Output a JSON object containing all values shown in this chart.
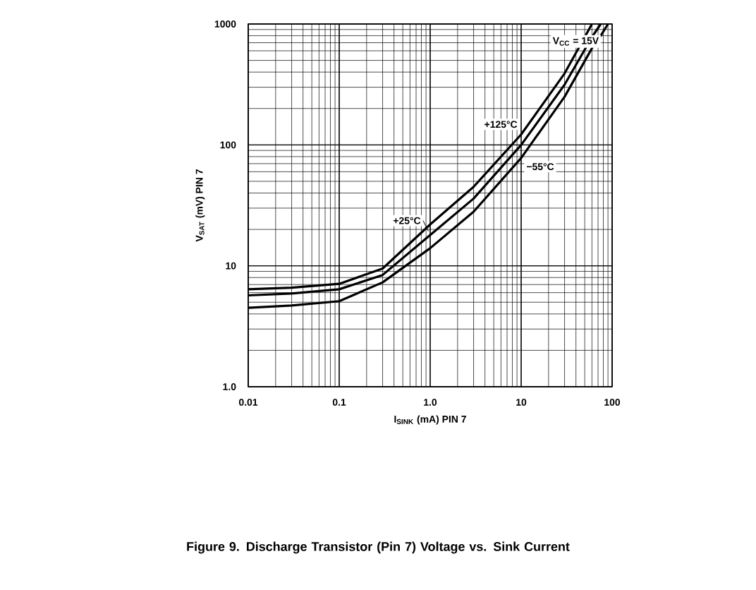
{
  "chart_data": {
    "type": "line",
    "title": "**Figure 9. Discharge Transistor (Pin 7) Voltage vs. Sink Current**",
    "xlabel": "I$_{SINK}$ (mA) PIN 7",
    "ylabel": "V$_{SAT}$ (mV) PIN 7",
    "annotations": [
      "V$_{CC}$ = 15V"
    ],
    "log": "xy",
    "grid": true,
    "xlim": [
      0.01,
      100
    ],
    "ylim": [
      1,
      1000
    ],
    "xticks": [
      0.01,
      0.1,
      {
        "value": 1,
        "label": "1.0"
      },
      10,
      100
    ],
    "yticks": [
      {
        "value": 1,
        "label": "1.0"
      },
      10,
      100,
      1000
    ],
    "x": [
      0.01,
      0.03,
      0.1,
      0.3,
      1,
      3,
      10,
      30,
      60,
      75,
      90
    ],
    "series": [
      {
        "name": "+125°C",
        "color": "#000000",
        "values": [
          6.4,
          6.6,
          7.1,
          9.5,
          22,
          45,
          122,
          390,
          1000,
          null,
          null
        ]
      },
      {
        "name": "+25°C",
        "color": "#000000",
        "values": [
          5.7,
          5.9,
          6.4,
          8.4,
          18,
          36,
          100,
          315,
          780,
          1000,
          null
        ]
      },
      {
        "name": "−55°C",
        "color": "#000000",
        "values": [
          4.5,
          4.7,
          5.1,
          7.3,
          14,
          28,
          78,
          250,
          630,
          800,
          1000
        ]
      }
    ]
  }
}
